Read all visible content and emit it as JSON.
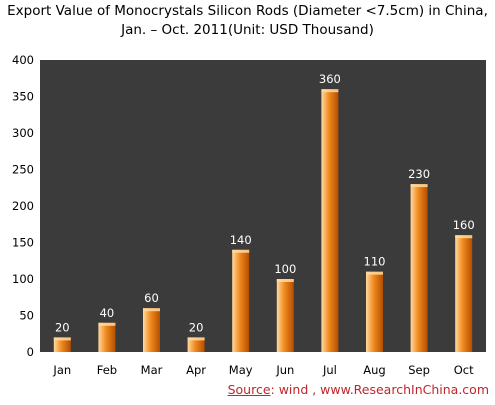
{
  "chart_data": {
    "type": "bar",
    "title": "Export Value of Monocrystals Silicon Rods (Diameter <7.5cm) in China, Jan. - Oct. 2011(Unit: USD Thousand)",
    "title_lines": [
      "Export Value of Monocrystals Silicon Rods (Diameter <7.5cm) in China,",
      "Jan. – Oct. 2011(Unit: USD Thousand)"
    ],
    "categories": [
      "Jan",
      "Feb",
      "Mar",
      "Apr",
      "May",
      "Jun",
      "Jul",
      "Aug",
      "Sep",
      "Oct"
    ],
    "values": [
      20,
      40,
      60,
      20,
      140,
      100,
      360,
      110,
      230,
      160
    ],
    "data_labels": [
      "20",
      "40",
      "60",
      "20",
      "140",
      "100",
      "360",
      "110",
      "230",
      "160"
    ],
    "xlabel": "",
    "ylabel": "",
    "ylim": [
      0,
      400
    ],
    "yticks": [
      0,
      50,
      100,
      150,
      200,
      250,
      300,
      350,
      400
    ],
    "grid": false,
    "legend": "none"
  },
  "source": {
    "label": "Source",
    "text": ": wind , www.ResearchInChina.com"
  },
  "colors": {
    "plot_background": "#3b3b3b",
    "bar_light": "#ffd9a0",
    "bar_mid": "#f08a1e",
    "bar_dark": "#b34e00",
    "data_label": "#ffffff",
    "axis_text": "#000000",
    "source_text": "#c0262c"
  }
}
